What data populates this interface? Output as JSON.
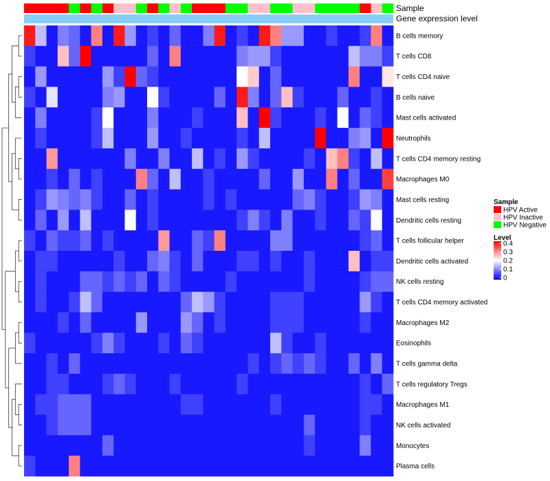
{
  "chart_data": {
    "type": "heatmap",
    "title": "",
    "annotation_tracks": [
      "Sample",
      "Gene expression level"
    ],
    "sample_legend": {
      "title": "Sample",
      "entries": [
        {
          "label": "HPV Active",
          "color": "#ff0000"
        },
        {
          "label": "HPV Inactive",
          "color": "#ffc0cb"
        },
        {
          "label": "HPV Negative",
          "color": "#00ff00"
        }
      ]
    },
    "level_legend": {
      "title": "Level",
      "ticks": [
        "0.4",
        "0.3",
        "0.2",
        "0.1",
        "0"
      ],
      "range": [
        0,
        0.4
      ],
      "colors": {
        "low": "#0000ff",
        "mid": "#ffffff",
        "high": "#ff0000"
      }
    },
    "expression_level_color": "#87cefa",
    "samples": [
      "A",
      "A",
      "A",
      "A",
      "N",
      "A",
      "N",
      "A",
      "I",
      "I",
      "N",
      "A",
      "N",
      "I",
      "N",
      "A",
      "A",
      "A",
      "N",
      "N",
      "I",
      "I",
      "N",
      "N",
      "I",
      "I",
      "N",
      "N",
      "N",
      "N",
      "A",
      "I",
      "N"
    ],
    "rows": [
      {
        "label": "B cells memory",
        "values": [
          0.38,
          0.15,
          0.02,
          0.1,
          0.08,
          0.02,
          0.3,
          0.02,
          0.38,
          0.12,
          0.02,
          0.05,
          0.02,
          0.08,
          0.02,
          0.02,
          0.1,
          0.38,
          0.02,
          0.05,
          0.02,
          0.38,
          0.3,
          0.12,
          0.12,
          0.02,
          0.02,
          0.05,
          0.02,
          0.02,
          0.05,
          0.3,
          0.02
        ]
      },
      {
        "label": "T cells CD8",
        "values": [
          0.05,
          0.02,
          0.02,
          0.25,
          0.08,
          0.4,
          0.02,
          0.02,
          0.02,
          0.02,
          0.02,
          0.08,
          0.02,
          0.3,
          0.02,
          0.02,
          0.02,
          0.02,
          0.02,
          0.1,
          0.12,
          0.12,
          0.05,
          0.02,
          0.02,
          0.02,
          0.02,
          0.02,
          0.02,
          0.15,
          0.1,
          0.1,
          0.05
        ]
      },
      {
        "label": "T cells CD4 naive",
        "values": [
          0.02,
          0.12,
          0.02,
          0.02,
          0.02,
          0.02,
          0.02,
          0.12,
          0.05,
          0.4,
          0.08,
          0.05,
          0.02,
          0.02,
          0.02,
          0.02,
          0.02,
          0.02,
          0.02,
          0.2,
          0.24,
          0.02,
          0.08,
          0.02,
          0.02,
          0.02,
          0.02,
          0.02,
          0.02,
          0.3,
          0.02,
          0.02,
          0.22
        ]
      },
      {
        "label": "B cells naive",
        "values": [
          0.05,
          0.02,
          0.18,
          0.02,
          0.02,
          0.02,
          0.02,
          0.1,
          0.12,
          0.02,
          0.02,
          0.2,
          0.05,
          0.02,
          0.02,
          0.02,
          0.02,
          0.08,
          0.02,
          0.38,
          0.1,
          0.02,
          0.08,
          0.25,
          0.05,
          0.02,
          0.02,
          0.02,
          0.08,
          0.02,
          0.02,
          0.05,
          0.02
        ]
      },
      {
        "label": "Mast cells activated",
        "values": [
          0.02,
          0.1,
          0.02,
          0.02,
          0.02,
          0.02,
          0.05,
          0.2,
          0.02,
          0.02,
          0.02,
          0.1,
          0.02,
          0.02,
          0.02,
          0.05,
          0.02,
          0.02,
          0.02,
          0.25,
          0.02,
          0.4,
          0.05,
          0.02,
          0.02,
          0.02,
          0.05,
          0.02,
          0.2,
          0.02,
          0.08,
          0.05,
          0.02
        ]
      },
      {
        "label": "Neutrophils",
        "values": [
          0.02,
          0.05,
          0.02,
          0.02,
          0.02,
          0.02,
          0.05,
          0.15,
          0.02,
          0.02,
          0.02,
          0.12,
          0.02,
          0.02,
          0.05,
          0.02,
          0.02,
          0.02,
          0.02,
          0.05,
          0.02,
          0.15,
          0.02,
          0.02,
          0.02,
          0.02,
          0.4,
          0.02,
          0.02,
          0.1,
          0.12,
          0.02,
          0.4
        ]
      },
      {
        "label": "T cells CD4 memory resting",
        "values": [
          0.02,
          0.02,
          0.28,
          0.02,
          0.02,
          0.02,
          0.02,
          0.02,
          0.02,
          0.1,
          0.02,
          0.02,
          0.1,
          0.02,
          0.02,
          0.15,
          0.02,
          0.05,
          0.02,
          0.12,
          0.05,
          0.02,
          0.02,
          0.02,
          0.02,
          0.05,
          0.02,
          0.25,
          0.3,
          0.05,
          0.02,
          0.15,
          0.02
        ]
      },
      {
        "label": "Macrophages M0",
        "values": [
          0.02,
          0.02,
          0.05,
          0.02,
          0.08,
          0.02,
          0.05,
          0.02,
          0.02,
          0.02,
          0.3,
          0.08,
          0.02,
          0.15,
          0.02,
          0.02,
          0.05,
          0.02,
          0.02,
          0.02,
          0.02,
          0.08,
          0.02,
          0.02,
          0.12,
          0.02,
          0.02,
          0.3,
          0.02,
          0.08,
          0.02,
          0.02,
          0.35
        ]
      },
      {
        "label": "Mast cells resting",
        "values": [
          0.02,
          0.05,
          0.12,
          0.1,
          0.08,
          0.1,
          0.05,
          0.02,
          0.02,
          0.08,
          0.02,
          0.05,
          0.02,
          0.02,
          0.02,
          0.02,
          0.05,
          0.02,
          0.05,
          0.02,
          0.02,
          0.02,
          0.02,
          0.02,
          0.08,
          0.1,
          0.05,
          0.02,
          0.02,
          0.05,
          0.12,
          0.1,
          0.02
        ]
      },
      {
        "label": "Dendritic cells resting",
        "values": [
          0.02,
          0.08,
          0.02,
          0.12,
          0.02,
          0.15,
          0.02,
          0.02,
          0.02,
          0.2,
          0.02,
          0.05,
          0.02,
          0.02,
          0.02,
          0.02,
          0.02,
          0.02,
          0.02,
          0.05,
          0.1,
          0.05,
          0.02,
          0.1,
          0.02,
          0.02,
          0.05,
          0.02,
          0.02,
          0.08,
          0.05,
          0.2,
          0.02
        ]
      },
      {
        "label": "T cells follicular helper",
        "values": [
          0.05,
          0.02,
          0.08,
          0.05,
          0.05,
          0.08,
          0.02,
          0.05,
          0.02,
          0.02,
          0.02,
          0.02,
          0.28,
          0.02,
          0.02,
          0.08,
          0.05,
          0.3,
          0.02,
          0.02,
          0.02,
          0.02,
          0.1,
          0.1,
          0.02,
          0.02,
          0.02,
          0.02,
          0.02,
          0.02,
          0.05,
          0.08,
          0.02
        ]
      },
      {
        "label": "Dendritic cells activated",
        "values": [
          0.02,
          0.05,
          0.05,
          0.02,
          0.02,
          0.02,
          0.02,
          0.02,
          0.05,
          0.02,
          0.02,
          0.08,
          0.1,
          0.05,
          0.02,
          0.08,
          0.02,
          0.02,
          0.02,
          0.05,
          0.05,
          0.02,
          0.05,
          0.02,
          0.02,
          0.05,
          0.02,
          0.02,
          0.02,
          0.25,
          0.02,
          0.05,
          0.05
        ]
      },
      {
        "label": "NK cells resting",
        "values": [
          0.02,
          0.05,
          0.02,
          0.02,
          0.02,
          0.08,
          0.08,
          0.05,
          0.08,
          0.05,
          0.08,
          0.02,
          0.08,
          0.05,
          0.02,
          0.02,
          0.02,
          0.02,
          0.05,
          0.02,
          0.02,
          0.02,
          0.02,
          0.02,
          0.02,
          0.05,
          0.02,
          0.02,
          0.02,
          0.02,
          0.05,
          0.08,
          0.08
        ]
      },
      {
        "label": "T cells CD4 memory activated",
        "values": [
          0.02,
          0.05,
          0.02,
          0.02,
          0.05,
          0.15,
          0.08,
          0.02,
          0.02,
          0.02,
          0.02,
          0.02,
          0.02,
          0.02,
          0.08,
          0.15,
          0.12,
          0.05,
          0.02,
          0.02,
          0.02,
          0.02,
          0.05,
          0.05,
          0.05,
          0.02,
          0.02,
          0.02,
          0.02,
          0.02,
          0.12,
          0.05,
          0.02
        ]
      },
      {
        "label": "Macrophages M2",
        "values": [
          0.02,
          0.02,
          0.02,
          0.05,
          0.02,
          0.08,
          0.02,
          0.02,
          0.02,
          0.02,
          0.12,
          0.02,
          0.02,
          0.02,
          0.12,
          0.08,
          0.02,
          0.05,
          0.02,
          0.02,
          0.02,
          0.02,
          0.05,
          0.05,
          0.05,
          0.02,
          0.02,
          0.02,
          0.02,
          0.02,
          0.05,
          0.02,
          0.02
        ]
      },
      {
        "label": "Eosinophils",
        "values": [
          0.05,
          0.02,
          0.02,
          0.02,
          0.02,
          0.02,
          0.05,
          0.1,
          0.05,
          0.02,
          0.02,
          0.02,
          0.05,
          0.02,
          0.08,
          0.05,
          0.02,
          0.02,
          0.02,
          0.02,
          0.02,
          0.02,
          0.15,
          0.05,
          0.02,
          0.02,
          0.05,
          0.02,
          0.02,
          0.02,
          0.02,
          0.02,
          0.02
        ]
      },
      {
        "label": "T cells gamma delta",
        "values": [
          0.02,
          0.02,
          0.05,
          0.02,
          0.08,
          0.02,
          0.02,
          0.02,
          0.02,
          0.02,
          0.02,
          0.02,
          0.02,
          0.02,
          0.02,
          0.02,
          0.02,
          0.02,
          0.02,
          0.02,
          0.05,
          0.02,
          0.05,
          0.08,
          0.05,
          0.08,
          0.05,
          0.02,
          0.02,
          0.08,
          0.02,
          0.1,
          0.02
        ]
      },
      {
        "label": "T cells regulatory  Tregs",
        "values": [
          0.02,
          0.02,
          0.05,
          0.05,
          0.02,
          0.02,
          0.02,
          0.05,
          0.08,
          0.05,
          0.02,
          0.02,
          0.02,
          0.05,
          0.02,
          0.02,
          0.02,
          0.02,
          0.02,
          0.05,
          0.02,
          0.02,
          0.02,
          0.02,
          0.02,
          0.02,
          0.02,
          0.02,
          0.02,
          0.02,
          0.05,
          0.02,
          0.08
        ]
      },
      {
        "label": "Macrophages M1",
        "values": [
          0.02,
          0.05,
          0.05,
          0.08,
          0.08,
          0.08,
          0.02,
          0.02,
          0.02,
          0.02,
          0.02,
          0.02,
          0.02,
          0.02,
          0.05,
          0.05,
          0.02,
          0.02,
          0.02,
          0.02,
          0.02,
          0.02,
          0.05,
          0.02,
          0.02,
          0.02,
          0.02,
          0.02,
          0.02,
          0.02,
          0.05,
          0.05,
          0.02
        ]
      },
      {
        "label": "NK cells activated",
        "values": [
          0.02,
          0.02,
          0.05,
          0.08,
          0.08,
          0.08,
          0.02,
          0.02,
          0.02,
          0.02,
          0.02,
          0.02,
          0.02,
          0.02,
          0.02,
          0.02,
          0.02,
          0.02,
          0.02,
          0.02,
          0.02,
          0.02,
          0.02,
          0.02,
          0.02,
          0.08,
          0.02,
          0.02,
          0.02,
          0.02,
          0.05,
          0.02,
          0.02
        ]
      },
      {
        "label": "Monocytes",
        "values": [
          0.02,
          0.02,
          0.02,
          0.02,
          0.02,
          0.02,
          0.02,
          0.08,
          0.02,
          0.02,
          0.02,
          0.02,
          0.02,
          0.02,
          0.02,
          0.02,
          0.02,
          0.02,
          0.02,
          0.02,
          0.02,
          0.02,
          0.02,
          0.02,
          0.02,
          0.05,
          0.02,
          0.02,
          0.02,
          0.02,
          0.1,
          0.02,
          0.02
        ]
      },
      {
        "label": "Plasma cells",
        "values": [
          0.05,
          0.02,
          0.02,
          0.02,
          0.3,
          0.02,
          0.02,
          0.02,
          0.02,
          0.02,
          0.02,
          0.02,
          0.02,
          0.02,
          0.02,
          0.02,
          0.02,
          0.02,
          0.02,
          0.02,
          0.02,
          0.02,
          0.02,
          0.02,
          0.02,
          0.02,
          0.02,
          0.02,
          0.02,
          0.02,
          0.02,
          0.02,
          0.02
        ]
      }
    ]
  }
}
